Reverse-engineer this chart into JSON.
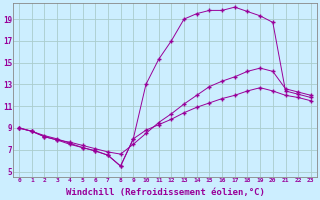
{
  "background_color": "#cceeff",
  "line_color": "#990099",
  "grid_color": "#aacccc",
  "xlabel": "Windchill (Refroidissement éolien,°C)",
  "xlabel_fontsize": 6.5,
  "ylabel_ticks": [
    5,
    7,
    9,
    11,
    13,
    15,
    17,
    19
  ],
  "xlim": [
    -0.5,
    23.5
  ],
  "ylim": [
    4.5,
    20.5
  ],
  "xtick_labels": [
    "0",
    "1",
    "2",
    "3",
    "4",
    "5",
    "6",
    "7",
    "8",
    "9",
    "10",
    "11",
    "12",
    "13",
    "14",
    "15",
    "16",
    "17",
    "18",
    "19",
    "20",
    "21",
    "22",
    "23"
  ],
  "line_upper_x": [
    0,
    1,
    2,
    3,
    4,
    5,
    6,
    7,
    8,
    9,
    10,
    11,
    12,
    13,
    14,
    15,
    16,
    17,
    18,
    19,
    20,
    21,
    22,
    23
  ],
  "line_upper_y": [
    9.0,
    8.7,
    8.3,
    8.0,
    7.6,
    7.2,
    6.9,
    6.5,
    5.5,
    8.0,
    13.0,
    15.3,
    17.0,
    19.0,
    19.5,
    19.8,
    19.8,
    20.1,
    19.7,
    19.3,
    18.7,
    12.4,
    12.1,
    11.8
  ],
  "line_mid_x": [
    0,
    1,
    2,
    3,
    4,
    5,
    6,
    7,
    8,
    9,
    10,
    11,
    12,
    13,
    14,
    15,
    16,
    17,
    18,
    19,
    20,
    21,
    22,
    23
  ],
  "line_mid_y": [
    9.0,
    8.7,
    8.2,
    7.9,
    7.7,
    7.4,
    7.1,
    6.8,
    6.6,
    7.5,
    8.5,
    9.5,
    10.3,
    11.2,
    12.0,
    12.8,
    13.3,
    13.7,
    14.2,
    14.5,
    14.2,
    12.6,
    12.3,
    12.0
  ],
  "line_lower_x": [
    0,
    1,
    2,
    3,
    4,
    5,
    6,
    7,
    8,
    9,
    10,
    11,
    12,
    13,
    14,
    15,
    16,
    17,
    18,
    19,
    20,
    21,
    22,
    23
  ],
  "line_lower_y": [
    9.0,
    8.7,
    8.2,
    7.9,
    7.5,
    7.2,
    6.9,
    6.5,
    5.5,
    8.0,
    8.8,
    9.3,
    9.8,
    10.4,
    10.9,
    11.3,
    11.7,
    12.0,
    12.4,
    12.7,
    12.4,
    12.0,
    11.8,
    11.5
  ]
}
